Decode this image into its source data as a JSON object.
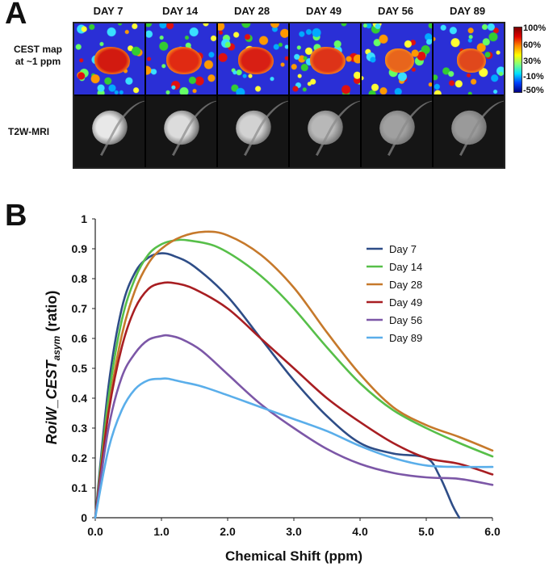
{
  "panel_a": {
    "letter": "A",
    "days": [
      "DAY 7",
      "DAY 14",
      "DAY 28",
      "DAY 49",
      "DAY 56",
      "DAY 89"
    ],
    "row_labels": {
      "cest_line1": "CEST map",
      "cest_line2": "at ~1 ppm",
      "mri": "T2W-MRI"
    },
    "colorbar_ticks": [
      "100%",
      "60%",
      "30%",
      "-10%",
      "-50%"
    ]
  },
  "panel_b": {
    "letter": "B"
  },
  "chart_data": {
    "type": "line",
    "xlabel": "Chemical Shift (ppm)",
    "ylabel_main": "RoiW_CEST",
    "ylabel_sub": "asym",
    "ylabel_tail": " (ratio)",
    "xlim": [
      0,
      6
    ],
    "ylim": [
      0,
      1
    ],
    "xticks": [
      "0.0",
      "1.0",
      "2.0",
      "3.0",
      "4.0",
      "5.0",
      "6.0"
    ],
    "yticks": [
      "0",
      "0.1",
      "0.2",
      "0.3",
      "0.4",
      "0.5",
      "0.6",
      "0.7",
      "0.8",
      "0.9",
      "1"
    ],
    "legend_position": "upper-right",
    "series": [
      {
        "name": "Day 7",
        "color": "#2e4d87",
        "x": [
          0,
          0.2,
          0.4,
          0.6,
          0.8,
          1.0,
          1.2,
          1.5,
          2.0,
          2.5,
          3.0,
          3.5,
          4.0,
          4.5,
          5.0,
          5.2,
          5.4,
          5.5
        ],
        "y": [
          0.0,
          0.44,
          0.7,
          0.82,
          0.87,
          0.885,
          0.875,
          0.84,
          0.74,
          0.6,
          0.46,
          0.34,
          0.25,
          0.215,
          0.2,
          0.14,
          0.04,
          0.0
        ]
      },
      {
        "name": "Day 14",
        "color": "#57bf49",
        "x": [
          0,
          0.2,
          0.4,
          0.6,
          0.8,
          1.0,
          1.2,
          1.4,
          1.8,
          2.2,
          2.6,
          3.0,
          3.5,
          4.0,
          4.5,
          5.0,
          5.5,
          6.0
        ],
        "y": [
          0.0,
          0.4,
          0.66,
          0.8,
          0.88,
          0.915,
          0.928,
          0.928,
          0.91,
          0.86,
          0.79,
          0.7,
          0.57,
          0.45,
          0.36,
          0.3,
          0.25,
          0.205
        ]
      },
      {
        "name": "Day 28",
        "color": "#c6792b",
        "x": [
          0,
          0.2,
          0.4,
          0.6,
          0.8,
          1.0,
          1.3,
          1.65,
          2.0,
          2.5,
          3.0,
          3.5,
          4.0,
          4.5,
          5.0,
          5.5,
          6.0
        ],
        "y": [
          0.0,
          0.36,
          0.61,
          0.76,
          0.85,
          0.9,
          0.94,
          0.957,
          0.945,
          0.88,
          0.77,
          0.62,
          0.48,
          0.37,
          0.31,
          0.27,
          0.225
        ]
      },
      {
        "name": "Day 49",
        "color": "#a81e22",
        "x": [
          0,
          0.2,
          0.4,
          0.6,
          0.8,
          1.0,
          1.2,
          1.5,
          2.0,
          2.5,
          3.0,
          3.5,
          4.0,
          4.5,
          5.0,
          5.5,
          6.0
        ],
        "y": [
          0.0,
          0.35,
          0.57,
          0.7,
          0.765,
          0.785,
          0.785,
          0.765,
          0.7,
          0.6,
          0.5,
          0.4,
          0.32,
          0.25,
          0.2,
          0.18,
          0.145
        ]
      },
      {
        "name": "Day 56",
        "color": "#7c57a7",
        "x": [
          0,
          0.2,
          0.4,
          0.6,
          0.8,
          1.0,
          1.1,
          1.3,
          1.6,
          2.0,
          2.5,
          3.0,
          3.5,
          4.0,
          4.5,
          5.0,
          5.5,
          6.0
        ],
        "y": [
          0.0,
          0.3,
          0.47,
          0.55,
          0.595,
          0.608,
          0.61,
          0.598,
          0.56,
          0.48,
          0.38,
          0.3,
          0.23,
          0.18,
          0.15,
          0.135,
          0.13,
          0.11
        ]
      },
      {
        "name": "Day 89",
        "color": "#5aaeea",
        "x": [
          0,
          0.2,
          0.4,
          0.6,
          0.8,
          1.0,
          1.1,
          1.3,
          1.6,
          2.0,
          2.5,
          3.0,
          3.5,
          4.0,
          4.5,
          5.0,
          5.5,
          6.0
        ],
        "y": [
          0.0,
          0.23,
          0.36,
          0.43,
          0.46,
          0.465,
          0.465,
          0.455,
          0.44,
          0.41,
          0.37,
          0.33,
          0.29,
          0.24,
          0.2,
          0.175,
          0.17,
          0.17
        ]
      }
    ]
  }
}
